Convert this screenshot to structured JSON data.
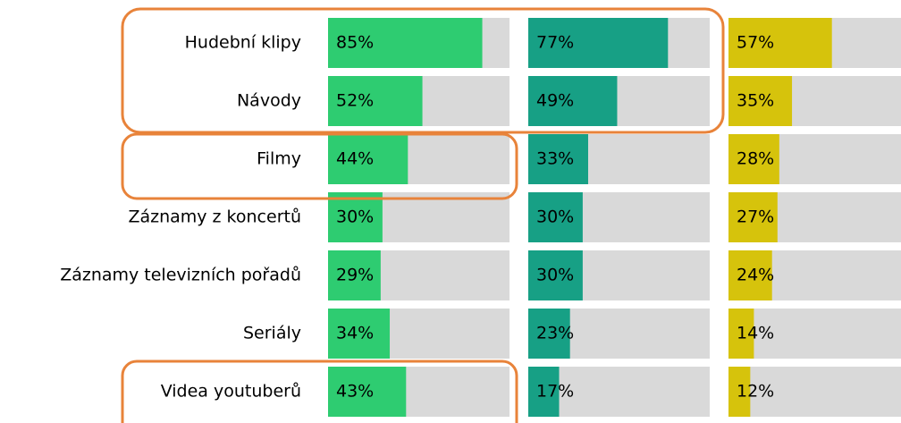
{
  "chart_data": {
    "type": "bar",
    "orientation": "horizontal",
    "categories": [
      "Hudební klipy",
      "Návody",
      "Filmy",
      "Záznamy z koncertů",
      "Záznamy televizních pořadů",
      "Seriály",
      "Videa youtuberů"
    ],
    "xlim": [
      0,
      100
    ],
    "series": [
      {
        "color": "#2ecc71",
        "values": [
          85,
          52,
          44,
          30,
          29,
          34,
          43
        ],
        "value_labels": [
          "85%",
          "52%",
          "44%",
          "30%",
          "29%",
          "34%",
          "43%"
        ]
      },
      {
        "color": "#17a085",
        "values": [
          77,
          49,
          33,
          30,
          30,
          23,
          17
        ],
        "value_labels": [
          "77%",
          "49%",
          "33%",
          "30%",
          "30%",
          "23%",
          "17%"
        ]
      },
      {
        "color": "#d6c30c",
        "values": [
          57,
          35,
          28,
          27,
          24,
          14,
          12
        ],
        "value_labels": [
          "57%",
          "35%",
          "28%",
          "27%",
          "24%",
          "14%",
          "12%"
        ]
      }
    ]
  }
}
